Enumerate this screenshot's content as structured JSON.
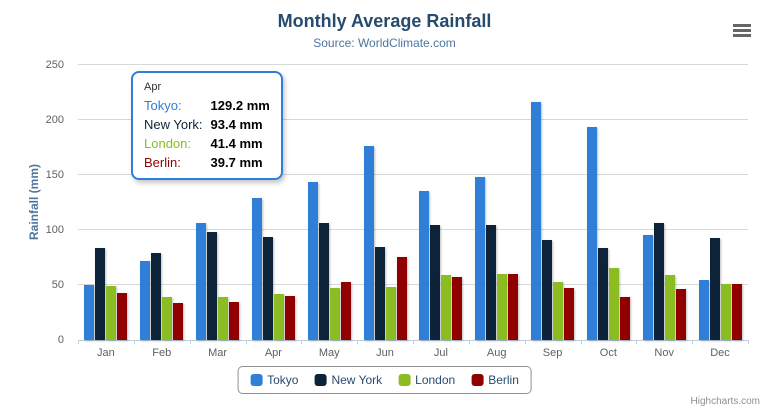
{
  "chart_data": {
    "type": "bar",
    "title": "Monthly Average Rainfall",
    "subtitle": "Source: WorldClimate.com",
    "xlabel": "",
    "ylabel": "Rainfall (mm)",
    "ylim": [
      0,
      250
    ],
    "ytick_interval": 50,
    "grid": true,
    "legend_position": "bottom",
    "categories": [
      "Jan",
      "Feb",
      "Mar",
      "Apr",
      "May",
      "Jun",
      "Jul",
      "Aug",
      "Sep",
      "Oct",
      "Nov",
      "Dec"
    ],
    "series": [
      {
        "name": "Tokyo",
        "color": "#2f7ed8",
        "values": [
          49.9,
          71.5,
          106.4,
          129.2,
          144.0,
          176.0,
          135.6,
          148.5,
          216.4,
          194.1,
          95.6,
          54.4
        ]
      },
      {
        "name": "New York",
        "color": "#0d233a",
        "values": [
          83.6,
          78.8,
          98.5,
          93.4,
          106.0,
          84.5,
          105.0,
          104.3,
          91.2,
          83.5,
          106.6,
          92.3
        ]
      },
      {
        "name": "London",
        "color": "#8bbc21",
        "values": [
          48.9,
          38.8,
          39.3,
          41.4,
          47.0,
          48.3,
          59.0,
          59.6,
          52.4,
          65.2,
          59.3,
          51.2
        ]
      },
      {
        "name": "Berlin",
        "color": "#910000",
        "values": [
          42.4,
          33.2,
          34.5,
          39.7,
          52.6,
          75.5,
          57.4,
          60.4,
          47.6,
          39.1,
          46.8,
          51.1
        ]
      }
    ]
  },
  "tooltip": {
    "header": "Apr",
    "border_color": "#2f7ed8",
    "rows": [
      {
        "label": "Tokyo:",
        "value": "129.2 mm",
        "color": "#2f7ed8"
      },
      {
        "label": "New York:",
        "value": "93.4 mm",
        "color": "#0d233a"
      },
      {
        "label": "London:",
        "value": "41.4 mm",
        "color": "#8bbc21"
      },
      {
        "label": "Berlin:",
        "value": "39.7 mm",
        "color": "#910000"
      }
    ]
  },
  "menu": {
    "icon": "hamburger-icon"
  },
  "credits": {
    "text": "Highcharts.com"
  },
  "theme": {
    "title_color": "#274b6d",
    "subtitle_color": "#4d759e",
    "axis_title_color": "#4d759e",
    "axis_label_color": "#606060",
    "axis_line_color": "#c0d0e0",
    "grid_color": "#d8d8d8",
    "legend_text_color": "#274b6d",
    "legend_border_color": "#909090",
    "credits_color": "#909090",
    "background": "#ffffff"
  }
}
